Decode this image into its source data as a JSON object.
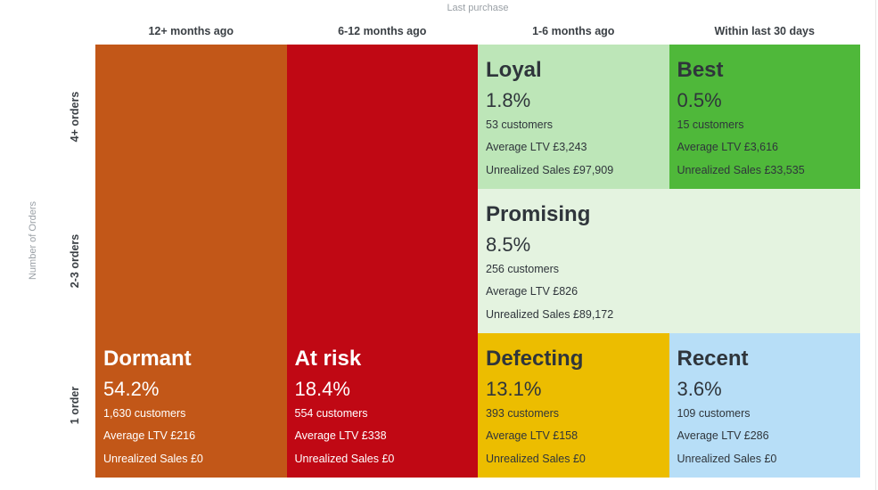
{
  "chart_data": {
    "type": "table",
    "title": "",
    "x_axis_title": "Last purchase",
    "y_axis_title": "Number of Orders",
    "columns": [
      "12+ months ago",
      "6-12 months ago",
      "1-6 months ago",
      "Within last 30 days"
    ],
    "rows": [
      "4+ orders",
      "2-3 orders",
      "1 order"
    ],
    "segments": [
      {
        "name": "Dormant",
        "percent": "54.2%",
        "customers": "1,630 customers",
        "ltv": "Average LTV £216",
        "unrealized": "Unrealized Sales £0",
        "color": "#c25718",
        "text_color": "light",
        "columns_span": [
          "12+ months ago"
        ],
        "rows_span": [
          "4+ orders",
          "2-3 orders",
          "1 order"
        ]
      },
      {
        "name": "At risk",
        "percent": "18.4%",
        "customers": "554 customers",
        "ltv": "Average LTV £338",
        "unrealized": "Unrealized Sales £0",
        "color": "#c00814",
        "text_color": "light",
        "columns_span": [
          "6-12 months ago"
        ],
        "rows_span": [
          "4+ orders",
          "2-3 orders",
          "1 order"
        ]
      },
      {
        "name": "Loyal",
        "percent": "1.8%",
        "customers": "53 customers",
        "ltv": "Average LTV £3,243",
        "unrealized": "Unrealized Sales £97,909",
        "color": "#bde6b8",
        "text_color": "dark",
        "columns_span": [
          "1-6 months ago"
        ],
        "rows_span": [
          "4+ orders"
        ]
      },
      {
        "name": "Best",
        "percent": "0.5%",
        "customers": "15 customers",
        "ltv": "Average LTV £3,616",
        "unrealized": "Unrealized Sales £33,535",
        "color": "#4fb83a",
        "text_color": "dark",
        "columns_span": [
          "Within last 30 days"
        ],
        "rows_span": [
          "4+ orders"
        ]
      },
      {
        "name": "Promising",
        "percent": "8.5%",
        "customers": "256 customers",
        "ltv": "Average LTV £826",
        "unrealized": "Unrealized Sales £89,172",
        "color": "#e4f3e0",
        "text_color": "dark",
        "columns_span": [
          "1-6 months ago",
          "Within last 30 days"
        ],
        "rows_span": [
          "2-3 orders"
        ]
      },
      {
        "name": "Defecting",
        "percent": "13.1%",
        "customers": "393 customers",
        "ltv": "Average LTV £158",
        "unrealized": "Unrealized Sales £0",
        "color": "#ecbd00",
        "text_color": "dark",
        "columns_span": [
          "1-6 months ago"
        ],
        "rows_span": [
          "1 order"
        ]
      },
      {
        "name": "Recent",
        "percent": "3.6%",
        "customers": "109 customers",
        "ltv": "Average LTV £286",
        "unrealized": "Unrealized Sales £0",
        "color": "#b7def7",
        "text_color": "dark",
        "columns_span": [
          "Within last 30 days"
        ],
        "rows_span": [
          "1 order"
        ]
      }
    ]
  }
}
